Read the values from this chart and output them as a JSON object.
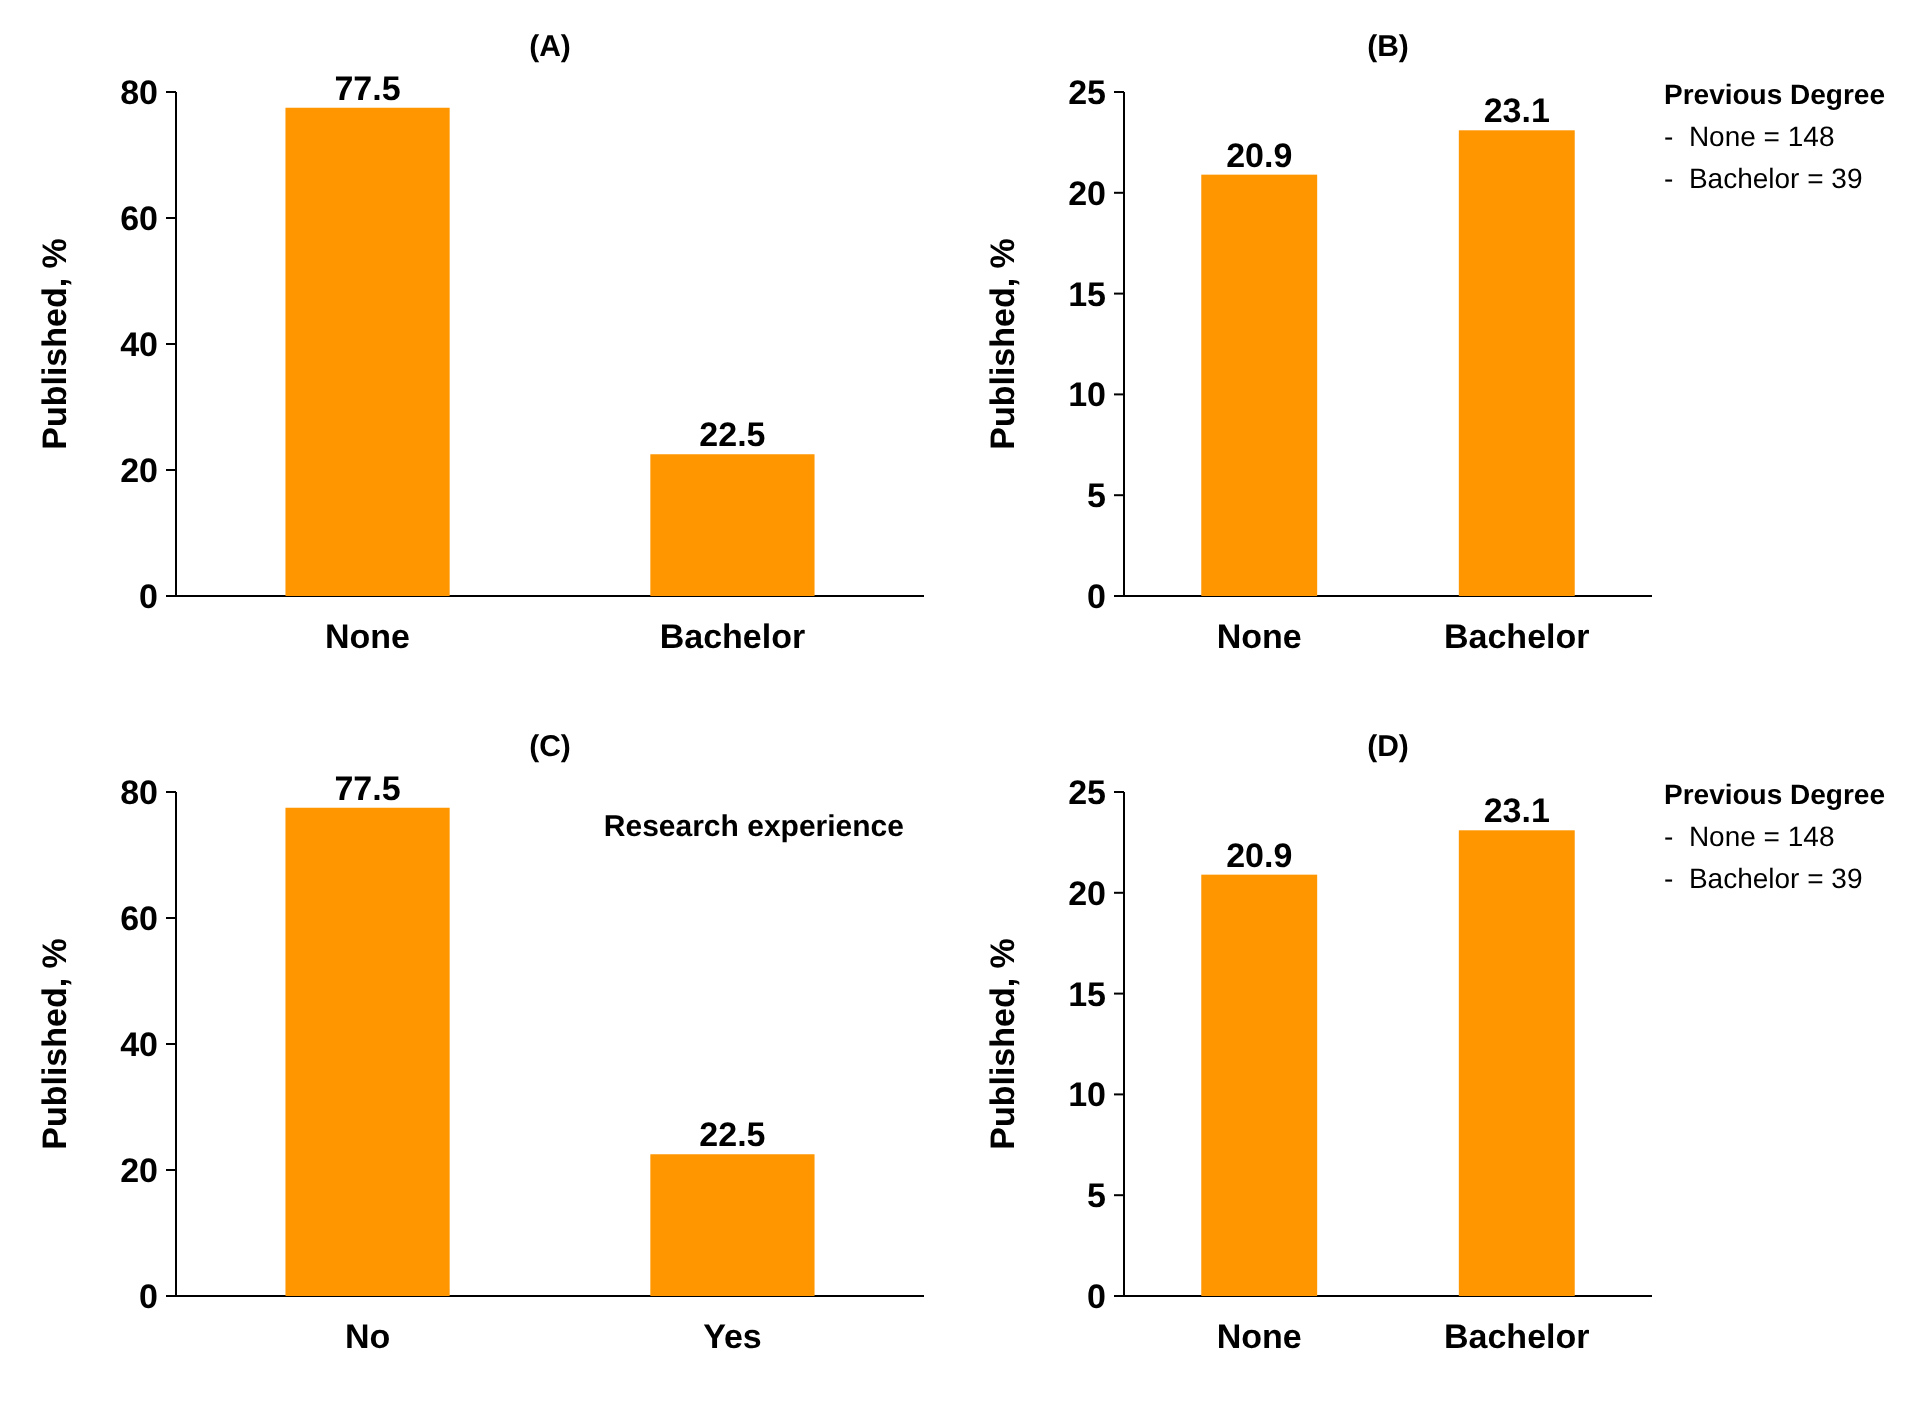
{
  "chart_data": [
    {
      "type": "bar",
      "title": "(A)",
      "ylabel": "Published, %",
      "categories": [
        "None",
        "Bachelor"
      ],
      "values": [
        77.5,
        22.5
      ],
      "color": "#ff9600",
      "ylim": [
        0,
        80
      ],
      "yticks": [
        0,
        20,
        40,
        60,
        80
      ],
      "data_labels": true
    },
    {
      "type": "bar",
      "title": "(B)",
      "ylabel": "Published, %",
      "categories": [
        "None",
        "Bachelor"
      ],
      "values": [
        20.9,
        23.1
      ],
      "color": "#ff9600",
      "ylim": [
        0,
        25
      ],
      "yticks": [
        0,
        5,
        10,
        15,
        20,
        25
      ],
      "data_labels": true,
      "annotations": [
        "Previous Degree",
        "-  None = 148",
        "-  Bachelor = 39"
      ]
    },
    {
      "type": "bar",
      "title": "(C)",
      "ylabel": "Published, %",
      "categories": [
        "No",
        "Yes"
      ],
      "values": [
        77.5,
        22.5
      ],
      "color": "#ff9600",
      "ylim": [
        0,
        80
      ],
      "yticks": [
        0,
        20,
        40,
        60,
        80
      ],
      "data_labels": true,
      "annotations": [
        "Research experience"
      ]
    },
    {
      "type": "bar",
      "title": "(D)",
      "ylabel": "Published, %",
      "categories": [
        "None",
        "Bachelor"
      ],
      "values": [
        20.9,
        23.1
      ],
      "color": "#ff9600",
      "ylim": [
        0,
        25
      ],
      "yticks": [
        0,
        5,
        10,
        15,
        20,
        25
      ],
      "data_labels": true,
      "annotations": [
        "Previous Degree",
        "-  None = 148",
        "-  Bachelor = 39"
      ]
    }
  ]
}
